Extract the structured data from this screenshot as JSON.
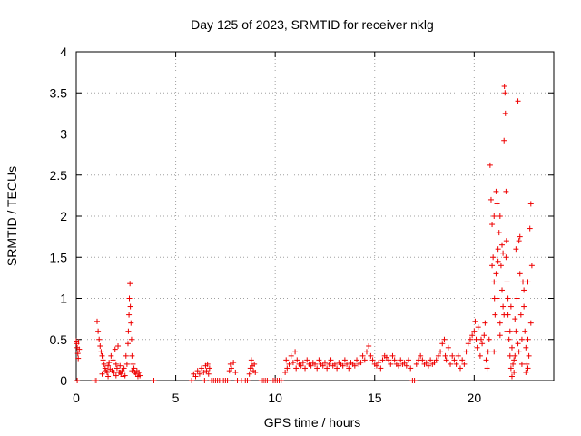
{
  "chart_data": {
    "type": "scatter",
    "title": "Day 125 of 2023, SRMTID for receiver nklg",
    "xlabel": "GPS time / hours",
    "ylabel": "SRMTID / TECUs",
    "xlim": [
      0,
      24
    ],
    "ylim": [
      0,
      4
    ],
    "grid": true,
    "marker": "+",
    "marker_color": "#ee0000",
    "x_ticks": [
      0,
      5,
      10,
      15,
      20
    ],
    "x_tick_labels": [
      "0",
      "5",
      "10",
      "15",
      "20"
    ],
    "y_ticks": [
      0,
      0.5,
      1,
      1.5,
      2,
      2.5,
      3,
      3.5,
      4
    ],
    "y_tick_labels": [
      "0",
      "0.5",
      "1",
      "1.5",
      "2",
      "2.5",
      "3",
      "3.5",
      "4"
    ],
    "series": [
      {
        "name": "SRMTID",
        "points": [
          [
            0.0,
            0.48
          ],
          [
            0.02,
            0.45
          ],
          [
            0.05,
            0.4
          ],
          [
            0.08,
            0.33
          ],
          [
            0.1,
            0.27
          ],
          [
            0.12,
            0.47
          ],
          [
            0.15,
            0.38
          ],
          [
            0.05,
            0.0
          ],
          [
            0.9,
            0.0
          ],
          [
            1.0,
            0.0
          ],
          [
            1.05,
            0.72
          ],
          [
            1.1,
            0.6
          ],
          [
            1.15,
            0.5
          ],
          [
            1.2,
            0.42
          ],
          [
            1.25,
            0.35
          ],
          [
            1.3,
            0.3
          ],
          [
            1.35,
            0.25
          ],
          [
            1.4,
            0.2
          ],
          [
            1.45,
            0.15
          ],
          [
            1.5,
            0.12
          ],
          [
            1.55,
            0.1
          ],
          [
            1.6,
            0.18
          ],
          [
            1.65,
            0.22
          ],
          [
            1.7,
            0.14
          ],
          [
            1.75,
            0.3
          ],
          [
            1.8,
            0.12
          ],
          [
            1.85,
            0.25
          ],
          [
            1.9,
            0.1
          ],
          [
            1.95,
            0.38
          ],
          [
            2.0,
            0.2
          ],
          [
            2.05,
            0.15
          ],
          [
            2.1,
            0.42
          ],
          [
            2.15,
            0.1
          ],
          [
            2.2,
            0.18
          ],
          [
            2.25,
            0.08
          ],
          [
            2.3,
            0.12
          ],
          [
            2.35,
            0.05
          ],
          [
            2.4,
            0.15
          ],
          [
            2.45,
            0.06
          ],
          [
            2.5,
            0.3
          ],
          [
            2.55,
            0.2
          ],
          [
            2.6,
            0.45
          ],
          [
            2.62,
            0.6
          ],
          [
            2.65,
            0.8
          ],
          [
            2.67,
            1.0
          ],
          [
            2.7,
            1.18
          ],
          [
            2.72,
            0.9
          ],
          [
            2.75,
            0.7
          ],
          [
            2.78,
            0.5
          ],
          [
            2.8,
            0.3
          ],
          [
            2.85,
            0.2
          ],
          [
            2.9,
            0.15
          ],
          [
            2.95,
            0.1
          ],
          [
            3.0,
            0.08
          ],
          [
            3.05,
            0.12
          ],
          [
            3.1,
            0.05
          ],
          [
            3.15,
            0.1
          ],
          [
            3.2,
            0.06
          ],
          [
            1.6,
            0.05
          ],
          [
            1.3,
            0.08
          ],
          [
            2.0,
            0.06
          ],
          [
            2.2,
            0.1
          ],
          [
            2.8,
            0.12
          ],
          [
            3.9,
            0.0
          ],
          [
            5.8,
            0.0
          ],
          [
            5.9,
            0.08
          ],
          [
            6.0,
            0.05
          ],
          [
            6.1,
            0.12
          ],
          [
            6.2,
            0.08
          ],
          [
            6.3,
            0.15
          ],
          [
            6.4,
            0.1
          ],
          [
            6.45,
            0.0
          ],
          [
            6.5,
            0.18
          ],
          [
            6.55,
            0.12
          ],
          [
            6.6,
            0.2
          ],
          [
            6.65,
            0.08
          ],
          [
            6.7,
            0.15
          ],
          [
            6.8,
            0.0
          ],
          [
            6.9,
            0.0
          ],
          [
            7.0,
            0.0
          ],
          [
            7.1,
            0.0
          ],
          [
            7.2,
            0.0
          ],
          [
            7.4,
            0.0
          ],
          [
            7.5,
            0.0
          ],
          [
            7.6,
            0.0
          ],
          [
            7.7,
            0.12
          ],
          [
            7.75,
            0.2
          ],
          [
            7.8,
            0.15
          ],
          [
            7.9,
            0.22
          ],
          [
            8.0,
            0.1
          ],
          [
            8.1,
            0.0
          ],
          [
            8.3,
            0.0
          ],
          [
            8.5,
            0.0
          ],
          [
            8.6,
            0.0
          ],
          [
            8.7,
            0.08
          ],
          [
            8.75,
            0.15
          ],
          [
            8.8,
            0.25
          ],
          [
            8.85,
            0.18
          ],
          [
            8.9,
            0.12
          ],
          [
            8.95,
            0.2
          ],
          [
            9.0,
            0.1
          ],
          [
            9.3,
            0.0
          ],
          [
            9.4,
            0.0
          ],
          [
            9.5,
            0.0
          ],
          [
            9.6,
            0.0
          ],
          [
            9.9,
            0.0
          ],
          [
            10.0,
            0.0
          ],
          [
            10.1,
            0.0
          ],
          [
            10.2,
            0.0
          ],
          [
            10.3,
            0.0
          ],
          [
            10.5,
            0.1
          ],
          [
            10.55,
            0.25
          ],
          [
            10.6,
            0.15
          ],
          [
            10.7,
            0.2
          ],
          [
            10.8,
            0.3
          ],
          [
            10.9,
            0.22
          ],
          [
            11.0,
            0.35
          ],
          [
            11.05,
            0.15
          ],
          [
            11.1,
            0.25
          ],
          [
            11.2,
            0.2
          ],
          [
            11.3,
            0.18
          ],
          [
            11.4,
            0.22
          ],
          [
            11.5,
            0.15
          ],
          [
            11.6,
            0.25
          ],
          [
            11.7,
            0.2
          ],
          [
            11.8,
            0.18
          ],
          [
            11.9,
            0.22
          ],
          [
            12.0,
            0.2
          ],
          [
            12.1,
            0.15
          ],
          [
            12.2,
            0.25
          ],
          [
            12.3,
            0.2
          ],
          [
            12.4,
            0.18
          ],
          [
            12.5,
            0.22
          ],
          [
            12.6,
            0.15
          ],
          [
            12.7,
            0.2
          ],
          [
            12.8,
            0.25
          ],
          [
            12.9,
            0.18
          ],
          [
            13.0,
            0.2
          ],
          [
            13.1,
            0.15
          ],
          [
            13.2,
            0.22
          ],
          [
            13.3,
            0.2
          ],
          [
            13.4,
            0.18
          ],
          [
            13.5,
            0.25
          ],
          [
            13.6,
            0.2
          ],
          [
            13.7,
            0.15
          ],
          [
            13.8,
            0.22
          ],
          [
            13.9,
            0.2
          ],
          [
            14.0,
            0.18
          ],
          [
            14.1,
            0.25
          ],
          [
            14.2,
            0.2
          ],
          [
            14.3,
            0.22
          ],
          [
            14.4,
            0.3
          ],
          [
            14.5,
            0.25
          ],
          [
            14.6,
            0.35
          ],
          [
            14.7,
            0.42
          ],
          [
            14.8,
            0.3
          ],
          [
            14.9,
            0.25
          ],
          [
            15.0,
            0.2
          ],
          [
            15.1,
            0.18
          ],
          [
            15.2,
            0.22
          ],
          [
            15.3,
            0.15
          ],
          [
            15.4,
            0.25
          ],
          [
            15.5,
            0.3
          ],
          [
            15.6,
            0.28
          ],
          [
            15.7,
            0.25
          ],
          [
            15.8,
            0.2
          ],
          [
            15.9,
            0.3
          ],
          [
            16.0,
            0.25
          ],
          [
            16.1,
            0.2
          ],
          [
            16.2,
            0.18
          ],
          [
            16.3,
            0.25
          ],
          [
            16.4,
            0.2
          ],
          [
            16.5,
            0.22
          ],
          [
            16.6,
            0.18
          ],
          [
            16.7,
            0.25
          ],
          [
            16.8,
            0.15
          ],
          [
            16.9,
            0.0
          ],
          [
            17.0,
            0.0
          ],
          [
            17.1,
            0.2
          ],
          [
            17.2,
            0.25
          ],
          [
            17.3,
            0.3
          ],
          [
            17.4,
            0.25
          ],
          [
            17.5,
            0.2
          ],
          [
            17.6,
            0.22
          ],
          [
            17.7,
            0.18
          ],
          [
            17.8,
            0.25
          ],
          [
            17.9,
            0.2
          ],
          [
            18.0,
            0.22
          ],
          [
            18.1,
            0.25
          ],
          [
            18.2,
            0.3
          ],
          [
            18.3,
            0.35
          ],
          [
            18.4,
            0.45
          ],
          [
            18.5,
            0.5
          ],
          [
            18.55,
            0.3
          ],
          [
            18.6,
            0.25
          ],
          [
            18.7,
            0.4
          ],
          [
            18.8,
            0.2
          ],
          [
            18.9,
            0.3
          ],
          [
            19.0,
            0.25
          ],
          [
            19.1,
            0.2
          ],
          [
            19.2,
            0.3
          ],
          [
            19.3,
            0.15
          ],
          [
            19.4,
            0.25
          ],
          [
            19.5,
            0.2
          ],
          [
            19.6,
            0.35
          ],
          [
            19.7,
            0.45
          ],
          [
            19.8,
            0.5
          ],
          [
            19.9,
            0.55
          ],
          [
            20.0,
            0.6
          ],
          [
            20.05,
            0.72
          ],
          [
            20.1,
            0.5
          ],
          [
            20.15,
            0.4
          ],
          [
            20.2,
            0.65
          ],
          [
            20.3,
            0.3
          ],
          [
            20.35,
            0.5
          ],
          [
            20.4,
            0.45
          ],
          [
            20.5,
            0.55
          ],
          [
            20.55,
            0.7
          ],
          [
            20.6,
            0.25
          ],
          [
            20.65,
            0.15
          ],
          [
            20.7,
            0.35
          ],
          [
            20.75,
            0.5
          ],
          [
            20.8,
            2.62
          ],
          [
            20.85,
            2.2
          ],
          [
            20.9,
            1.9
          ],
          [
            20.95,
            1.5
          ],
          [
            21.0,
            1.2
          ],
          [
            21.02,
            1.0
          ],
          [
            21.05,
            0.8
          ],
          [
            21.1,
            1.3
          ],
          [
            21.15,
            1.0
          ],
          [
            21.2,
            1.6
          ],
          [
            21.25,
            1.8
          ],
          [
            21.3,
            2.0
          ],
          [
            21.35,
            1.4
          ],
          [
            21.4,
            1.1
          ],
          [
            21.45,
            0.9
          ],
          [
            21.5,
            2.92
          ],
          [
            21.52,
            3.58
          ],
          [
            21.55,
            3.5
          ],
          [
            21.57,
            3.25
          ],
          [
            21.6,
            2.3
          ],
          [
            21.62,
            1.7
          ],
          [
            21.65,
            1.2
          ],
          [
            21.7,
            0.8
          ],
          [
            21.75,
            0.5
          ],
          [
            21.8,
            0.3
          ],
          [
            21.85,
            0.15
          ],
          [
            21.9,
            0.05
          ],
          [
            21.95,
            0.2
          ],
          [
            22.0,
            0.1
          ],
          [
            22.05,
            0.3
          ],
          [
            22.1,
            0.6
          ],
          [
            22.15,
            1.0
          ],
          [
            22.2,
            3.4
          ],
          [
            22.25,
            1.7
          ],
          [
            22.3,
            1.3
          ],
          [
            22.35,
            0.8
          ],
          [
            22.4,
            0.5
          ],
          [
            22.45,
            1.2
          ],
          [
            22.5,
            0.9
          ],
          [
            22.55,
            0.6
          ],
          [
            22.6,
            0.4
          ],
          [
            22.65,
            0.2
          ],
          [
            22.7,
            0.15
          ],
          [
            22.75,
            0.3
          ],
          [
            22.8,
            1.85
          ],
          [
            22.85,
            2.15
          ],
          [
            22.9,
            1.4
          ],
          [
            22.85,
            0.7
          ],
          [
            22.7,
            0.5
          ],
          [
            21.0,
            0.35
          ],
          [
            21.3,
            0.55
          ],
          [
            21.5,
            0.8
          ],
          [
            21.7,
            1.0
          ],
          [
            21.9,
            0.4
          ],
          [
            22.0,
            0.25
          ],
          [
            22.2,
            0.45
          ],
          [
            22.4,
            0.2
          ],
          [
            22.6,
            0.1
          ],
          [
            21.1,
            2.3
          ],
          [
            21.2,
            1.45
          ],
          [
            21.4,
            1.65
          ],
          [
            21.6,
            1.5
          ],
          [
            21.8,
            0.6
          ],
          [
            22.1,
            1.6
          ],
          [
            22.3,
            1.75
          ],
          [
            22.5,
            1.1
          ],
          [
            22.7,
            1.2
          ],
          [
            20.9,
            1.4
          ],
          [
            21.0,
            2.0
          ],
          [
            21.15,
            2.15
          ],
          [
            21.3,
            0.7
          ],
          [
            21.45,
            1.55
          ],
          [
            21.65,
            0.6
          ],
          [
            21.85,
            0.9
          ],
          [
            22.05,
            0.75
          ],
          [
            22.25,
            0.35
          ]
        ]
      }
    ]
  }
}
